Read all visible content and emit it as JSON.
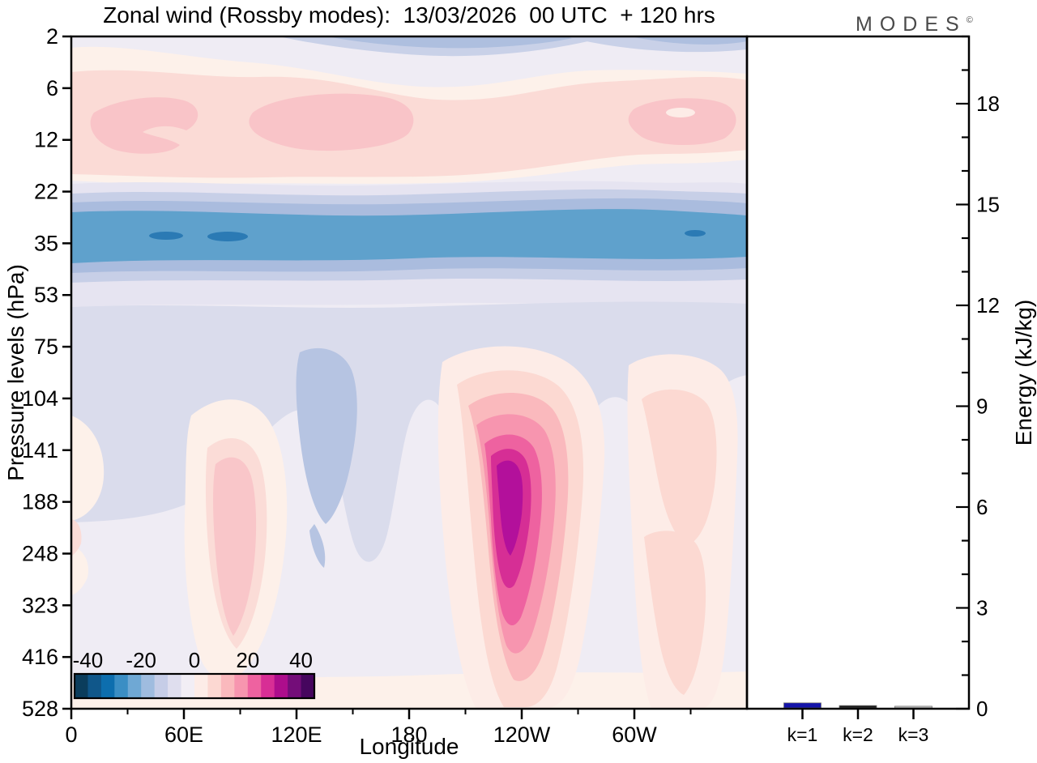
{
  "title": "Zonal wind (Rossby modes):  13/03/2026  00 UTC  + 120 hrs",
  "logo": {
    "text": "MODES",
    "mark": "©"
  },
  "axes": {
    "xlabel": "Longitude",
    "ylabel_left": "Pressure levels (hPa)",
    "ylabel_right": "Energy (kJ/kg)"
  },
  "chart_data": [
    {
      "type": "heatmap",
      "subtype": "filled contour section: zonal wind of Rossby modes vs longitude and pressure",
      "title": "Zonal wind (Rossby modes):  13/03/2026  00 UTC  + 120 hrs",
      "xlabel": "Longitude",
      "ylabel": "Pressure levels (hPa)",
      "x_tick_labels": [
        "0",
        "60E",
        "120E",
        "180",
        "120W",
        "60W"
      ],
      "x_range_deg": [
        0,
        360
      ],
      "x_minor_tick_step_deg": 30,
      "y_tick_labels": [
        "2",
        "6",
        "12",
        "22",
        "35",
        "53",
        "75",
        "104",
        "141",
        "188",
        "248",
        "323",
        "416",
        "528"
      ],
      "y_axis_note": "14 equally spaced model pressure levels, 2 hPa at top to 528 hPa at bottom",
      "grid": false,
      "colorbar": {
        "tick_labels": [
          "-40",
          "-20",
          "0",
          "20",
          "40"
        ],
        "level_min": -45,
        "level_max": 45,
        "level_step": 5,
        "colors": [
          "#0b3d5c",
          "#10578a",
          "#0d6eae",
          "#3b8ec4",
          "#6fa8d4",
          "#9fbcdf",
          "#c6cde7",
          "#dfdeee",
          "#f2eef5",
          "#fdece7",
          "#fcd8d2",
          "#fab9bd",
          "#f795af",
          "#ee62a0",
          "#d82e95",
          "#ad0d8c",
          "#740d79",
          "#46065e"
        ]
      },
      "features": [
        {
          "description": "positive wind band",
          "value_range": [
            5,
            15
          ],
          "pressure_hPa": [
            4,
            20
          ],
          "longitude": "all longitudes; maxima (+10 to +15) near 20E-40E, 90E-130E and 30W-60W"
        },
        {
          "description": "strong negative band",
          "value_range": [
            -25,
            -15
          ],
          "pressure_hPa": [
            25,
            45
          ],
          "longitude": "all longitudes; small -25 cores near 50E, 80E and 75W"
        },
        {
          "description": "weak negative layer",
          "value_range": [
            -10,
            -5
          ],
          "pressure_hPa": [
            50,
            140
          ],
          "longitude": "all longitudes; local minimum near 130E-145E"
        },
        {
          "description": "strong positive cell",
          "value_range": [
            15,
            40
          ],
          "pressure_hPa": [
            120,
            450
          ],
          "longitude": "centered near 125W; peak about +40 near 170-220 hPa"
        },
        {
          "description": "positive column",
          "value_range": [
            5,
            15
          ],
          "pressure_hPa": [
            140,
            420
          ],
          "longitude": "centered near 75E"
        },
        {
          "description": "weak positive column",
          "value_range": [
            5,
            10
          ],
          "pressure_hPa": [
            100,
            528
          ],
          "longitude": "centered near 40W-50W"
        }
      ]
    },
    {
      "type": "bar",
      "title": "Energy per zonal wavenumber",
      "categories": [
        "k=1",
        "k=2",
        "k=3"
      ],
      "values": [
        0.15,
        0.07,
        0.05
      ],
      "bar_colors": [
        "#1414aa",
        "#1a1a1a",
        "#c8c8c8"
      ],
      "ylabel": "Energy (kJ/kg)",
      "ylim": [
        0,
        20
      ],
      "y_major_ticks": [
        0,
        3,
        6,
        9,
        12,
        15,
        18
      ],
      "y_minor_tick_step": 1,
      "legend": "none"
    }
  ]
}
